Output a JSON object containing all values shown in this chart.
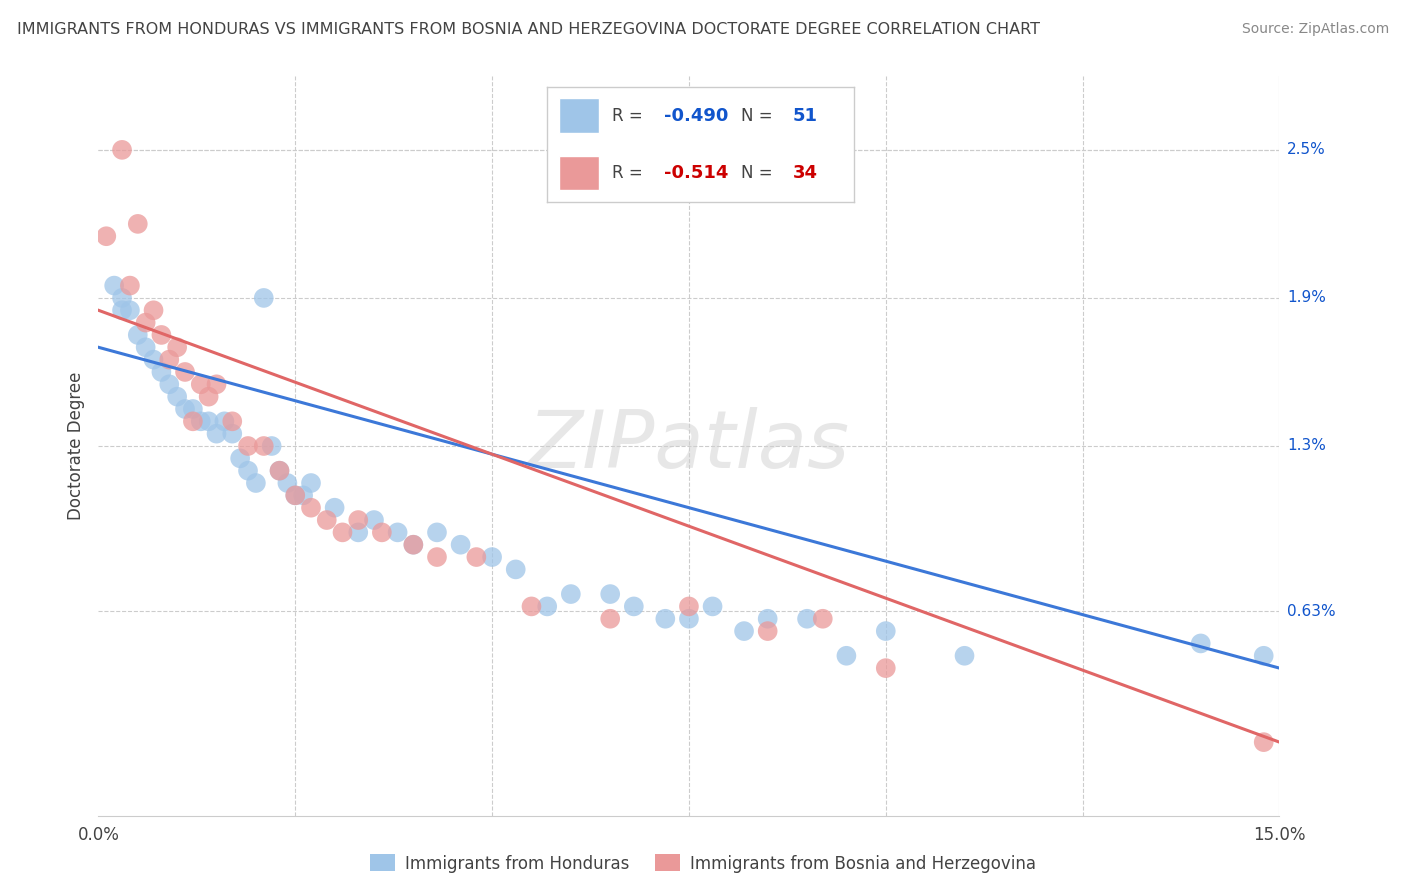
{
  "title": "IMMIGRANTS FROM HONDURAS VS IMMIGRANTS FROM BOSNIA AND HERZEGOVINA DOCTORATE DEGREE CORRELATION CHART",
  "source": "Source: ZipAtlas.com",
  "ylabel": "Doctorate Degree",
  "ytick_labels": [
    "0.63%",
    "1.3%",
    "1.9%",
    "2.5%"
  ],
  "ytick_values": [
    0.0063,
    0.013,
    0.019,
    0.025
  ],
  "xlim": [
    0.0,
    0.15
  ],
  "ylim": [
    -0.002,
    0.028
  ],
  "legend_r1": "R = -0.490",
  "legend_n1": "N = 51",
  "legend_r2": "R = -0.514",
  "legend_n2": "N = 34",
  "color_blue": "#9fc5e8",
  "color_pink": "#ea9999",
  "color_blue_line": "#3c78d8",
  "color_pink_line": "#e06666",
  "color_blue_dark": "#1155cc",
  "color_pink_dark": "#cc0000",
  "color_text": "#434343",
  "watermark": "ZIPatlas",
  "blue_x": [
    0.002,
    0.003,
    0.003,
    0.004,
    0.005,
    0.006,
    0.007,
    0.008,
    0.009,
    0.01,
    0.011,
    0.012,
    0.013,
    0.014,
    0.015,
    0.016,
    0.017,
    0.018,
    0.019,
    0.02,
    0.021,
    0.022,
    0.023,
    0.024,
    0.025,
    0.026,
    0.027,
    0.03,
    0.033,
    0.035,
    0.038,
    0.04,
    0.043,
    0.046,
    0.05,
    0.053,
    0.057,
    0.06,
    0.065,
    0.068,
    0.072,
    0.075,
    0.078,
    0.082,
    0.085,
    0.09,
    0.095,
    0.1,
    0.11,
    0.14,
    0.148
  ],
  "blue_y": [
    0.0195,
    0.019,
    0.0185,
    0.0185,
    0.0175,
    0.017,
    0.0165,
    0.016,
    0.0155,
    0.015,
    0.0145,
    0.0145,
    0.014,
    0.014,
    0.0135,
    0.014,
    0.0135,
    0.0125,
    0.012,
    0.0115,
    0.019,
    0.013,
    0.012,
    0.0115,
    0.011,
    0.011,
    0.0115,
    0.0105,
    0.0095,
    0.01,
    0.0095,
    0.009,
    0.0095,
    0.009,
    0.0085,
    0.008,
    0.0065,
    0.007,
    0.007,
    0.0065,
    0.006,
    0.006,
    0.0065,
    0.0055,
    0.006,
    0.006,
    0.0045,
    0.0055,
    0.0045,
    0.005,
    0.0045
  ],
  "pink_x": [
    0.001,
    0.003,
    0.004,
    0.005,
    0.006,
    0.007,
    0.008,
    0.009,
    0.01,
    0.011,
    0.012,
    0.013,
    0.014,
    0.015,
    0.017,
    0.019,
    0.021,
    0.023,
    0.025,
    0.027,
    0.029,
    0.031,
    0.033,
    0.036,
    0.04,
    0.043,
    0.048,
    0.055,
    0.065,
    0.075,
    0.085,
    0.092,
    0.1,
    0.148
  ],
  "pink_y": [
    0.0215,
    0.025,
    0.0195,
    0.022,
    0.018,
    0.0185,
    0.0175,
    0.0165,
    0.017,
    0.016,
    0.014,
    0.0155,
    0.015,
    0.0155,
    0.014,
    0.013,
    0.013,
    0.012,
    0.011,
    0.0105,
    0.01,
    0.0095,
    0.01,
    0.0095,
    0.009,
    0.0085,
    0.0085,
    0.0065,
    0.006,
    0.0065,
    0.0055,
    0.006,
    0.004,
    0.001
  ],
  "blue_line_x0": 0.0,
  "blue_line_y0": 0.017,
  "blue_line_x1": 0.15,
  "blue_line_y1": 0.004,
  "pink_line_x0": 0.0,
  "pink_line_y0": 0.0185,
  "pink_line_x1": 0.15,
  "pink_line_y1": 0.001
}
